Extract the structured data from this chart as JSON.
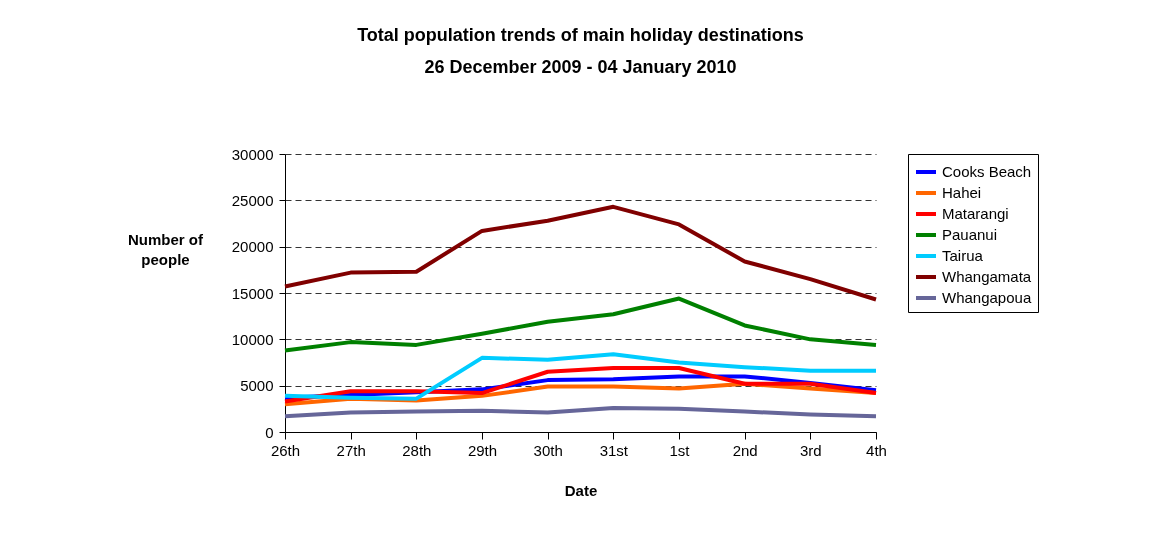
{
  "chart_data": {
    "type": "line",
    "title": "Total population trends of main holiday destinations",
    "subtitle": "26 December 2009 - 04 January 2010",
    "xlabel": "Date",
    "ylabel": "Number of people",
    "categories": [
      "26th",
      "27th",
      "28th",
      "29th",
      "30th",
      "31st",
      "1st",
      "2nd",
      "3rd",
      "4th"
    ],
    "ylim": [
      0,
      30000
    ],
    "yticks": [
      0,
      5000,
      10000,
      15000,
      20000,
      25000,
      30000
    ],
    "grid": "y",
    "legend": "right",
    "marker": "none",
    "line_style": "solid",
    "series": [
      {
        "name": "Cooks Beach",
        "color": "#0000ff",
        "values": [
          3700,
          4000,
          4300,
          4600,
          5600,
          5700,
          6000,
          6000,
          5300,
          4500
        ]
      },
      {
        "name": "Hahei",
        "color": "#ff6600",
        "values": [
          3000,
          3600,
          3400,
          3900,
          4900,
          4900,
          4700,
          5200,
          4700,
          4200
        ]
      },
      {
        "name": "Matarangi",
        "color": "#ff0000",
        "values": [
          3300,
          4400,
          4400,
          4200,
          6500,
          6900,
          6900,
          5200,
          5200,
          4200
        ]
      },
      {
        "name": "Pauanui",
        "color": "#008000",
        "values": [
          8800,
          9700,
          9400,
          10600,
          11900,
          12700,
          14400,
          11500,
          10000,
          9400
        ]
      },
      {
        "name": "Tairua",
        "color": "#00ccff",
        "values": [
          3900,
          3700,
          3600,
          8000,
          7800,
          8400,
          7500,
          7000,
          6600,
          6600
        ]
      },
      {
        "name": "Whangamata",
        "color": "#800000",
        "values": [
          15700,
          17200,
          17300,
          21700,
          22800,
          24300,
          22400,
          18400,
          16500,
          14300
        ]
      },
      {
        "name": "Whangapoua",
        "color": "#666699",
        "values": [
          1700,
          2100,
          2200,
          2300,
          2100,
          2600,
          2500,
          2200,
          1900,
          1700
        ]
      }
    ]
  }
}
